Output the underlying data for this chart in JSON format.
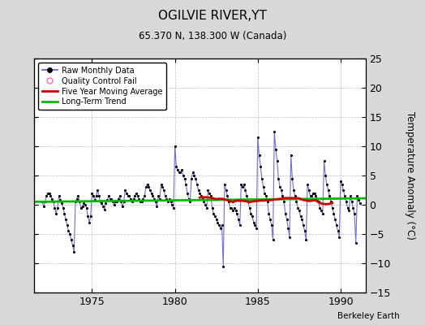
{
  "title": "OGILVIE RIVER,YT",
  "subtitle": "65.370 N, 138.300 W (Canada)",
  "ylabel": "Temperature Anomaly (°C)",
  "attribution": "Berkeley Earth",
  "xlim": [
    1971.5,
    1991.5
  ],
  "ylim": [
    -15,
    25
  ],
  "yticks": [
    -15,
    -10,
    -5,
    0,
    5,
    10,
    15,
    20,
    25
  ],
  "xticks": [
    1975,
    1980,
    1985,
    1990
  ],
  "bg_color": "#d8d8d8",
  "plot_bg_color": "#ffffff",
  "raw_color": "#5555cc",
  "dot_color": "#000000",
  "moving_avg_color": "#cc0000",
  "trend_color": "#00bb00",
  "qc_color": "#ff69b4",
  "trend_x": [
    1971.5,
    1991.5
  ],
  "trend_y": [
    0.5,
    1.1
  ],
  "raw_data": [
    [
      1972.0,
      0.5
    ],
    [
      1972.083,
      -0.3
    ],
    [
      1972.167,
      0.5
    ],
    [
      1972.25,
      1.5
    ],
    [
      1972.333,
      2.0
    ],
    [
      1972.417,
      2.0
    ],
    [
      1972.5,
      1.5
    ],
    [
      1972.583,
      1.0
    ],
    [
      1972.667,
      0.5
    ],
    [
      1972.75,
      -0.5
    ],
    [
      1972.833,
      -1.5
    ],
    [
      1972.917,
      -0.5
    ],
    [
      1973.0,
      1.5
    ],
    [
      1973.083,
      0.8
    ],
    [
      1973.167,
      0.3
    ],
    [
      1973.25,
      -0.5
    ],
    [
      1973.333,
      -1.5
    ],
    [
      1973.417,
      -2.5
    ],
    [
      1973.5,
      -3.5
    ],
    [
      1973.583,
      -4.5
    ],
    [
      1973.667,
      -5.0
    ],
    [
      1973.75,
      -6.0
    ],
    [
      1973.833,
      -7.0
    ],
    [
      1973.917,
      -8.0
    ],
    [
      1974.0,
      0.5
    ],
    [
      1974.083,
      1.0
    ],
    [
      1974.167,
      1.5
    ],
    [
      1974.25,
      0.5
    ],
    [
      1974.333,
      -0.5
    ],
    [
      1974.417,
      -0.3
    ],
    [
      1974.5,
      0.3
    ],
    [
      1974.583,
      0.0
    ],
    [
      1974.667,
      -0.5
    ],
    [
      1974.75,
      -2.0
    ],
    [
      1974.833,
      -3.0
    ],
    [
      1974.917,
      -2.0
    ],
    [
      1975.0,
      2.0
    ],
    [
      1975.083,
      1.5
    ],
    [
      1975.167,
      0.8
    ],
    [
      1975.25,
      1.5
    ],
    [
      1975.333,
      2.5
    ],
    [
      1975.417,
      1.5
    ],
    [
      1975.5,
      0.5
    ],
    [
      1975.583,
      0.3
    ],
    [
      1975.667,
      -0.3
    ],
    [
      1975.75,
      -0.8
    ],
    [
      1975.833,
      0.3
    ],
    [
      1975.917,
      0.8
    ],
    [
      1976.0,
      1.5
    ],
    [
      1976.083,
      1.0
    ],
    [
      1976.167,
      1.0
    ],
    [
      1976.25,
      0.5
    ],
    [
      1976.333,
      0.0
    ],
    [
      1976.417,
      0.5
    ],
    [
      1976.5,
      0.5
    ],
    [
      1976.583,
      1.0
    ],
    [
      1976.667,
      1.5
    ],
    [
      1976.75,
      0.5
    ],
    [
      1976.833,
      -0.3
    ],
    [
      1976.917,
      0.5
    ],
    [
      1977.0,
      2.5
    ],
    [
      1977.083,
      2.0
    ],
    [
      1977.167,
      1.5
    ],
    [
      1977.25,
      1.5
    ],
    [
      1977.333,
      1.0
    ],
    [
      1977.417,
      0.5
    ],
    [
      1977.5,
      1.0
    ],
    [
      1977.583,
      1.5
    ],
    [
      1977.667,
      2.0
    ],
    [
      1977.75,
      1.5
    ],
    [
      1977.833,
      1.0
    ],
    [
      1977.917,
      0.5
    ],
    [
      1978.0,
      0.5
    ],
    [
      1978.083,
      1.0
    ],
    [
      1978.167,
      1.5
    ],
    [
      1978.25,
      3.0
    ],
    [
      1978.333,
      3.5
    ],
    [
      1978.417,
      3.0
    ],
    [
      1978.5,
      2.5
    ],
    [
      1978.583,
      2.0
    ],
    [
      1978.667,
      1.5
    ],
    [
      1978.75,
      1.0
    ],
    [
      1978.833,
      0.5
    ],
    [
      1978.917,
      -0.3
    ],
    [
      1979.0,
      1.5
    ],
    [
      1979.083,
      1.0
    ],
    [
      1979.167,
      3.5
    ],
    [
      1979.25,
      3.0
    ],
    [
      1979.333,
      2.5
    ],
    [
      1979.417,
      1.5
    ],
    [
      1979.5,
      1.0
    ],
    [
      1979.583,
      0.5
    ],
    [
      1979.667,
      1.0
    ],
    [
      1979.75,
      0.5
    ],
    [
      1979.833,
      0.0
    ],
    [
      1979.917,
      -0.5
    ],
    [
      1980.0,
      10.0
    ],
    [
      1980.083,
      6.5
    ],
    [
      1980.167,
      6.0
    ],
    [
      1980.25,
      5.5
    ],
    [
      1980.333,
      5.5
    ],
    [
      1980.417,
      6.0
    ],
    [
      1980.5,
      5.0
    ],
    [
      1980.583,
      4.5
    ],
    [
      1980.667,
      3.5
    ],
    [
      1980.75,
      2.0
    ],
    [
      1980.833,
      1.0
    ],
    [
      1980.917,
      0.5
    ],
    [
      1981.0,
      4.5
    ],
    [
      1981.083,
      5.5
    ],
    [
      1981.167,
      5.0
    ],
    [
      1981.25,
      4.5
    ],
    [
      1981.333,
      3.5
    ],
    [
      1981.417,
      2.5
    ],
    [
      1981.5,
      2.0
    ],
    [
      1981.583,
      1.5
    ],
    [
      1981.667,
      1.0
    ],
    [
      1981.75,
      0.5
    ],
    [
      1981.833,
      0.0
    ],
    [
      1981.917,
      -0.5
    ],
    [
      1982.0,
      2.5
    ],
    [
      1982.083,
      2.0
    ],
    [
      1982.167,
      1.5
    ],
    [
      1982.25,
      -0.5
    ],
    [
      1982.333,
      -1.5
    ],
    [
      1982.417,
      -2.0
    ],
    [
      1982.5,
      -2.5
    ],
    [
      1982.583,
      -3.0
    ],
    [
      1982.667,
      -3.5
    ],
    [
      1982.75,
      -4.0
    ],
    [
      1982.833,
      -3.5
    ],
    [
      1982.917,
      -10.5
    ],
    [
      1983.0,
      3.5
    ],
    [
      1983.083,
      2.5
    ],
    [
      1983.167,
      1.5
    ],
    [
      1983.25,
      0.5
    ],
    [
      1983.333,
      -0.5
    ],
    [
      1983.417,
      -0.5
    ],
    [
      1983.5,
      -1.0
    ],
    [
      1983.583,
      -0.5
    ],
    [
      1983.667,
      -1.0
    ],
    [
      1983.75,
      -1.5
    ],
    [
      1983.833,
      -2.5
    ],
    [
      1983.917,
      -3.5
    ],
    [
      1984.0,
      3.5
    ],
    [
      1984.083,
      3.0
    ],
    [
      1984.167,
      3.5
    ],
    [
      1984.25,
      2.5
    ],
    [
      1984.333,
      1.5
    ],
    [
      1984.417,
      0.5
    ],
    [
      1984.5,
      -0.5
    ],
    [
      1984.583,
      -1.5
    ],
    [
      1984.667,
      -2.0
    ],
    [
      1984.75,
      -3.0
    ],
    [
      1984.833,
      -3.5
    ],
    [
      1984.917,
      -4.0
    ],
    [
      1985.0,
      11.5
    ],
    [
      1985.083,
      8.5
    ],
    [
      1985.167,
      6.5
    ],
    [
      1985.25,
      4.5
    ],
    [
      1985.333,
      3.0
    ],
    [
      1985.417,
      2.0
    ],
    [
      1985.5,
      1.5
    ],
    [
      1985.583,
      0.5
    ],
    [
      1985.667,
      -1.5
    ],
    [
      1985.75,
      -2.5
    ],
    [
      1985.833,
      -3.5
    ],
    [
      1985.917,
      -6.0
    ],
    [
      1986.0,
      12.5
    ],
    [
      1986.083,
      9.5
    ],
    [
      1986.167,
      7.5
    ],
    [
      1986.25,
      4.5
    ],
    [
      1986.333,
      3.0
    ],
    [
      1986.417,
      2.5
    ],
    [
      1986.5,
      1.5
    ],
    [
      1986.583,
      0.5
    ],
    [
      1986.667,
      -1.5
    ],
    [
      1986.75,
      -2.5
    ],
    [
      1986.833,
      -4.0
    ],
    [
      1986.917,
      -5.5
    ],
    [
      1987.0,
      8.5
    ],
    [
      1987.083,
      4.5
    ],
    [
      1987.167,
      2.5
    ],
    [
      1987.25,
      1.5
    ],
    [
      1987.333,
      0.5
    ],
    [
      1987.417,
      -0.5
    ],
    [
      1987.5,
      -1.0
    ],
    [
      1987.583,
      -2.0
    ],
    [
      1987.667,
      -2.5
    ],
    [
      1987.75,
      -3.5
    ],
    [
      1987.833,
      -4.5
    ],
    [
      1987.917,
      -6.0
    ],
    [
      1988.0,
      3.5
    ],
    [
      1988.083,
      2.5
    ],
    [
      1988.167,
      1.5
    ],
    [
      1988.25,
      1.5
    ],
    [
      1988.333,
      2.0
    ],
    [
      1988.417,
      2.0
    ],
    [
      1988.5,
      1.5
    ],
    [
      1988.583,
      1.0
    ],
    [
      1988.667,
      0.5
    ],
    [
      1988.75,
      -0.5
    ],
    [
      1988.833,
      -1.0
    ],
    [
      1988.917,
      -1.5
    ],
    [
      1989.0,
      7.5
    ],
    [
      1989.083,
      5.0
    ],
    [
      1989.167,
      3.5
    ],
    [
      1989.25,
      2.5
    ],
    [
      1989.333,
      1.5
    ],
    [
      1989.417,
      0.5
    ],
    [
      1989.5,
      -0.5
    ],
    [
      1989.583,
      -1.5
    ],
    [
      1989.667,
      -2.5
    ],
    [
      1989.75,
      -3.5
    ],
    [
      1989.833,
      -4.5
    ],
    [
      1989.917,
      -5.5
    ],
    [
      1990.0,
      4.0
    ],
    [
      1990.083,
      3.5
    ],
    [
      1990.167,
      2.5
    ],
    [
      1990.25,
      1.5
    ],
    [
      1990.333,
      0.5
    ],
    [
      1990.417,
      -0.5
    ],
    [
      1990.5,
      -1.0
    ],
    [
      1990.583,
      1.5
    ],
    [
      1990.667,
      0.5
    ],
    [
      1990.75,
      -0.5
    ],
    [
      1990.833,
      -1.5
    ],
    [
      1990.917,
      -6.5
    ],
    [
      1991.0,
      1.5
    ],
    [
      1991.083,
      0.8
    ],
    [
      1991.167,
      0.3
    ]
  ]
}
